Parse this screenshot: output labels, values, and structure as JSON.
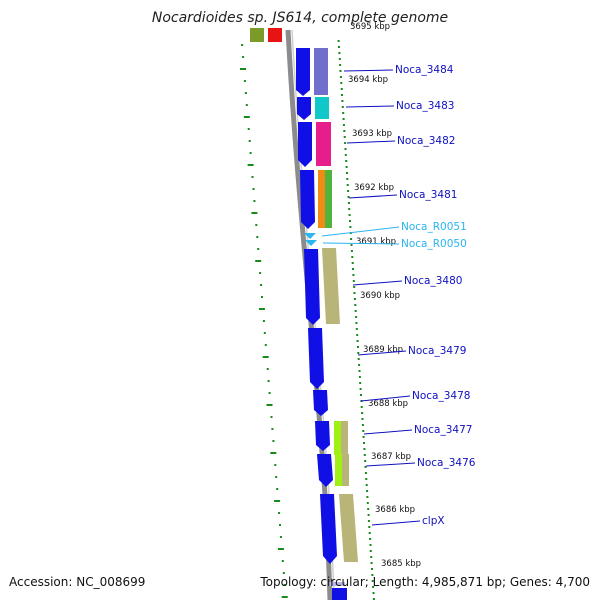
{
  "header": {
    "title": "Nocardioides sp. JS614, complete genome"
  },
  "footer": {
    "accession": "Accession: NC_008699",
    "topology": "Topology: circular; Length: 4,985,871 bp; Genes: 4,700"
  },
  "scale": {
    "top_partial_label": "3695 kbp",
    "ticks": [
      "3694 kbp",
      "3693 kbp",
      "3692 kbp",
      "3691 kbp",
      "3690 kbp",
      "3689 kbp",
      "3688 kbp",
      "3687 kbp",
      "3686 kbp",
      "3685 kbp"
    ]
  },
  "genes": [
    {
      "label": "Noca_3484",
      "color": "#0a0ab4",
      "type": "cds"
    },
    {
      "label": "Noca_3483",
      "color": "#0a0ab4",
      "type": "cds"
    },
    {
      "label": "Noca_3482",
      "color": "#0a0ab4",
      "type": "cds"
    },
    {
      "label": "Noca_3481",
      "color": "#0a0ab4",
      "type": "cds"
    },
    {
      "label": "Noca_R0051",
      "color": "#3ec8f0",
      "type": "rna"
    },
    {
      "label": "Noca_R0050",
      "color": "#3ec8f0",
      "type": "rna"
    },
    {
      "label": "Noca_3480",
      "color": "#0a0ab4",
      "type": "cds"
    },
    {
      "label": "Noca_3479",
      "color": "#0a0ab4",
      "type": "cds"
    },
    {
      "label": "Noca_3478",
      "color": "#0a0ab4",
      "type": "cds"
    },
    {
      "label": "Noca_3477",
      "color": "#0a0ab4",
      "type": "cds"
    },
    {
      "label": "Noca_3476",
      "color": "#0a0ab4",
      "type": "cds"
    },
    {
      "label": "clpX",
      "color": "#0a0ab4",
      "type": "cds"
    }
  ],
  "colors": {
    "cds_blue": "#1010e6",
    "rna_cyan": "#2ab4f0",
    "backbone": "#8c8c8c",
    "gc_dash": "#1a8a1a",
    "cog_purple": "#7070cc",
    "cog_cyan": "#10c8c8",
    "cog_pink": "#e61e8c",
    "cog_orange": "#f08c14",
    "cog_green": "#50b43c",
    "cog_khaki": "#b9b478",
    "cog_lime": "#a0f014",
    "top_red": "#e81414",
    "top_olive": "#7c9a28"
  }
}
